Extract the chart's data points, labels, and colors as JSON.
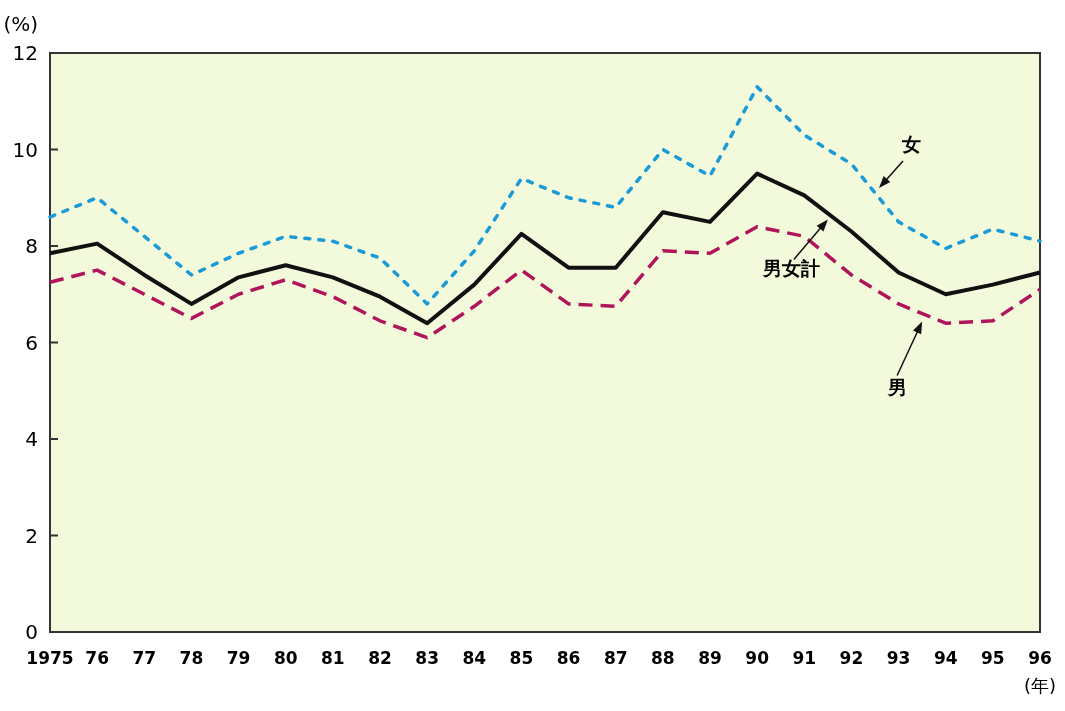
{
  "chart_data": {
    "type": "line",
    "ylabel": "(%)",
    "xlabel": "(年)",
    "categories": [
      "1975",
      "76",
      "77",
      "78",
      "79",
      "80",
      "81",
      "82",
      "83",
      "84",
      "85",
      "86",
      "87",
      "88",
      "89",
      "90",
      "91",
      "92",
      "93",
      "94",
      "95",
      "96"
    ],
    "ylim": [
      0,
      12
    ],
    "yticks": [
      0,
      2,
      4,
      6,
      8,
      10,
      12
    ],
    "grid": false,
    "marker": "none",
    "series": [
      {
        "name": "女",
        "color": "#1a9ad6",
        "line_style": "dotted",
        "values": [
          8.6,
          9.0,
          8.2,
          7.4,
          7.85,
          8.2,
          8.1,
          7.75,
          6.8,
          7.9,
          9.4,
          9.0,
          8.8,
          10.0,
          9.45,
          11.3,
          10.3,
          9.7,
          8.5,
          7.95,
          8.35,
          8.1
        ]
      },
      {
        "name": "男女計",
        "color": "#111111",
        "line_style": "solid",
        "values": [
          7.85,
          8.05,
          7.4,
          6.8,
          7.35,
          7.6,
          7.35,
          6.95,
          6.4,
          7.2,
          8.25,
          7.55,
          7.55,
          8.7,
          8.5,
          9.5,
          9.05,
          8.3,
          7.45,
          7.0,
          7.2,
          7.45
        ]
      },
      {
        "name": "男",
        "color": "#b0155a",
        "line_style": "dashed",
        "values": [
          7.25,
          7.5,
          7.0,
          6.5,
          7.0,
          7.3,
          6.95,
          6.45,
          6.1,
          6.75,
          7.5,
          6.8,
          6.75,
          7.9,
          7.85,
          8.4,
          8.2,
          7.4,
          6.8,
          6.4,
          6.45,
          7.1
        ]
      }
    ]
  }
}
